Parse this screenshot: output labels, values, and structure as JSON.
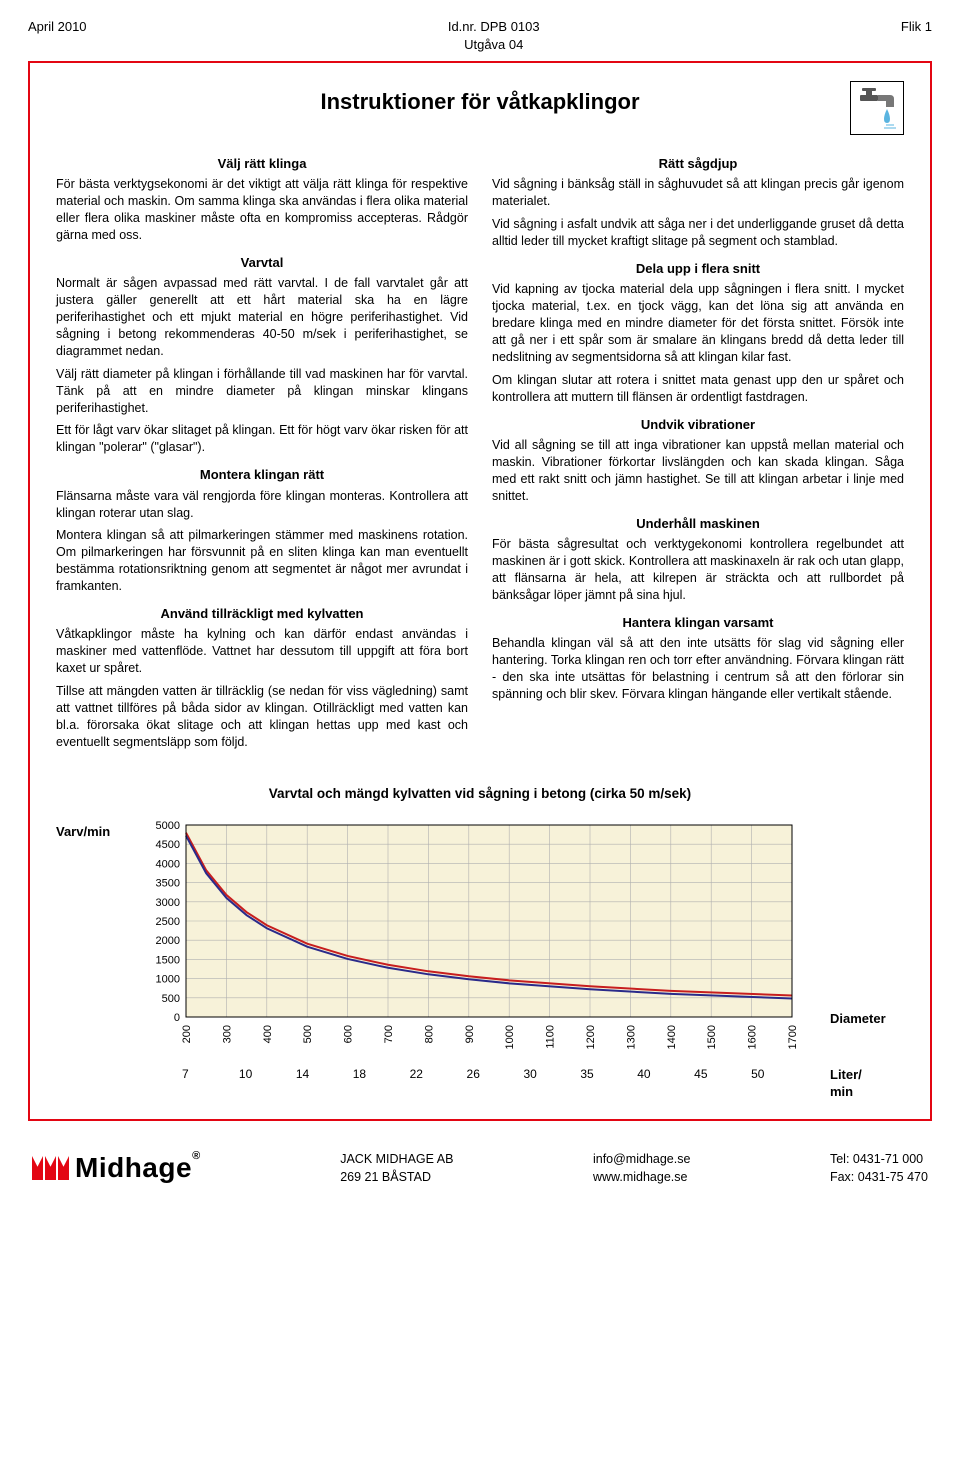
{
  "header": {
    "left": "April 2010",
    "center_line1": "Id.nr. DPB 0103",
    "center_line2": "Utgåva 04",
    "right": "Flik 1"
  },
  "title": "Instruktioner för våtkapklingor",
  "left_col": {
    "s1_head": "Välj rätt klinga",
    "s1_p1": "För bästa verktygsekonomi är det viktigt att välja rätt klinga för respektive material och maskin. Om samma klinga ska användas i flera olika material eller flera olika maskiner måste ofta en kompromiss accepteras. Rådgör gärna med oss.",
    "s2_head": "Varvtal",
    "s2_p1": "Normalt är sågen avpassad med rätt varvtal. I de fall varvtalet går att justera gäller generellt att ett hårt material ska ha en lägre periferihastighet och ett mjukt material en högre periferihastighet. Vid sågning i betong rekommenderas 40-50 m/sek i periferihastighet, se diagrammet nedan.",
    "s2_p2": "Välj rätt diameter på klingan i förhållande till vad maskinen har för varvtal. Tänk på att en mindre diameter på klingan minskar klingans periferihastighet.",
    "s2_p3": "Ett för lågt varv ökar slitaget på klingan. Ett för högt varv ökar risken för att klingan \"polerar\" (\"glasar\").",
    "s3_head": "Montera klingan rätt",
    "s3_p1": "Flänsarna måste vara väl rengjorda före klingan monteras. Kontrollera att klingan roterar utan slag.",
    "s3_p2": "Montera klingan så att pilmarkeringen stämmer med maskinens rotation. Om pilmarkeringen har försvunnit på en sliten klinga kan man eventuellt bestämma rotationsriktning genom att segmentet är något mer avrundat i framkanten.",
    "s4_head": "Använd tillräckligt med kylvatten",
    "s4_p1": "Våtkapklingor måste ha kylning och kan därför endast användas i maskiner med vattenflöde. Vattnet har dessutom till uppgift att föra bort kaxet ur spåret.",
    "s4_p2": "Tillse att mängden vatten är tillräcklig (se nedan för viss vägledning) samt att vattnet tillföres på båda sidor av klingan. Otillräckligt med vatten kan bl.a. förorsaka ökat slitage och att klingan hettas upp med kast och eventuellt segmentsläpp som följd."
  },
  "right_col": {
    "s1_head": "Rätt sågdjup",
    "s1_p1": "Vid sågning i bänksåg ställ in såghuvudet så att klingan precis går igenom materialet.",
    "s1_p2": "Vid sågning i asfalt undvik att såga ner i det underliggande gruset då detta alltid leder till mycket kraftigt slitage på segment och stamblad.",
    "s2_head": "Dela upp i flera snitt",
    "s2_p1": "Vid kapning av tjocka material dela upp sågningen i flera snitt. I mycket tjocka material, t.ex. en tjock vägg, kan det löna sig att använda en bredare klinga med en mindre diameter för det första snittet. Försök inte att gå ner i ett spår som är smalare än klingans bredd då detta leder till nedslitning av segmentsidorna så att klingan kilar fast.",
    "s2_p2": "Om klingan slutar att rotera i snittet mata genast upp den ur spåret och kontrollera att muttern till flänsen är ordentligt fastdragen.",
    "s3_head": "Undvik vibrationer",
    "s3_p1": "Vid all sågning se till att inga vibrationer kan uppstå mellan material och maskin. Vibrationer förkortar livslängden och kan skada klingan. Såga med ett rakt snitt och jämn hastighet. Se till att klingan arbetar i linje med snittet.",
    "s4_head": "Underhåll maskinen",
    "s4_p1": "För bästa sågresultat och verktygekonomi kontrollera regelbundet att maskinen är i gott skick. Kontrollera att maskinaxeln är rak och utan glapp, att flänsarna är hela, att kilrepen är sträckta och att rullbordet på bänksågar löper jämnt på sina hjul.",
    "s5_head": "Hantera klingan varsamt",
    "s5_p1": "Behandla klingan väl så att den inte utsätts för slag vid sågning eller hantering. Torka klingan ren och torr efter användning. Förvara klingan rätt - den ska inte utsättas för belastning i centrum så att den förlorar sin spänning och blir skev. Förvara klingan hängande eller vertikalt stående."
  },
  "chart": {
    "title": "Varvtal och mängd kylvatten vid sågning i betong (cirka 50 m/sek)",
    "ylabel": "Varv/min",
    "xlabel": "Diameter",
    "liter_label": "Liter/\nmin",
    "yticks": [
      0,
      500,
      1000,
      1500,
      2000,
      2500,
      3000,
      3500,
      4000,
      4500,
      5000
    ],
    "xticks": [
      200,
      300,
      400,
      500,
      600,
      700,
      800,
      900,
      1000,
      1100,
      1200,
      1300,
      1400,
      1500,
      1600,
      1700
    ],
    "liter_values": [
      7,
      10,
      14,
      18,
      22,
      26,
      30,
      35,
      40,
      45,
      50
    ],
    "series": {
      "x": [
        200,
        250,
        300,
        350,
        400,
        500,
        600,
        700,
        800,
        900,
        1000,
        1200,
        1400,
        1700
      ],
      "y": [
        4800,
        3820,
        3180,
        2730,
        2390,
        1910,
        1590,
        1360,
        1190,
        1060,
        955,
        800,
        680,
        560
      ]
    },
    "plot_bg": "#f7f2d9",
    "grid_color": "#b0b0b0",
    "line_color1": "#c71e1e",
    "line_color2": "#2a2a8a",
    "ylim": [
      0,
      5000
    ],
    "xlim": [
      200,
      1700
    ]
  },
  "footer": {
    "brand": "Midhage",
    "col1_l1": "JACK MIDHAGE AB",
    "col1_l2": "269 21  BÅSTAD",
    "col2_l1": "info@midhage.se",
    "col2_l2": "www.midhage.se",
    "col3_l1": "Tel:  0431-71 000",
    "col3_l2": "Fax: 0431-75 470"
  }
}
